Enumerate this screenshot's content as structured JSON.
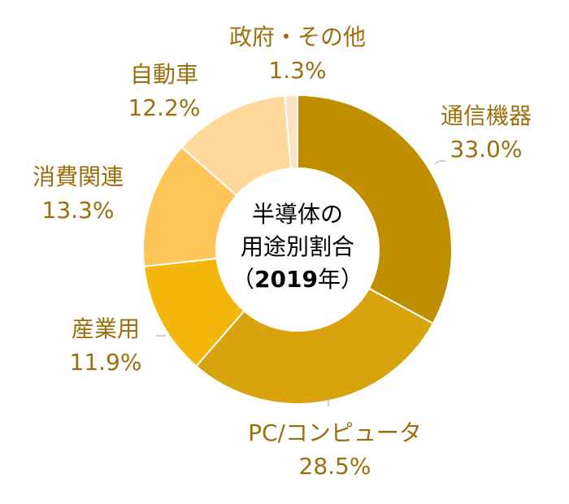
{
  "chart_data": {
    "type": "pie",
    "variant": "donut",
    "center_title": [
      "半導体の",
      "用途別割合"
    ],
    "center_year": {
      "open": "（",
      "year": "2019",
      "suffix": "年）"
    },
    "label_color": "#9c6f0d",
    "slices": [
      {
        "name": "通信機器",
        "value_label": "33.0%",
        "value": 33.0,
        "color": "#bf8f00"
      },
      {
        "name": "PC/コンピュータ",
        "value_label": "28.5%",
        "value": 28.5,
        "color": "#d9a30e"
      },
      {
        "name": "産業用",
        "value_label": "11.9%",
        "value": 11.9,
        "color": "#f2b70a"
      },
      {
        "name": "消費関連",
        "value_label": "13.3%",
        "value": 13.3,
        "color": "#ffc559"
      },
      {
        "name": "自動車",
        "value_label": "12.2%",
        "value": 12.2,
        "color": "#ffd89b"
      },
      {
        "name": "政府・その他",
        "value_label": "1.3%",
        "value": 1.3,
        "color": "#fbe2c4"
      }
    ]
  }
}
